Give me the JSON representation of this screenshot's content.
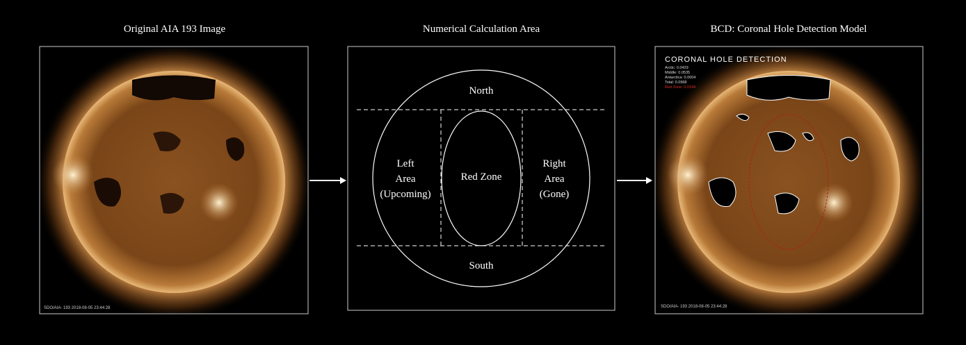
{
  "panels": [
    {
      "title": "Original AIA 193 Image",
      "caption": "SDO/AIA- 193 2018-08-05 23:44:28"
    },
    {
      "title": "Numerical Calculation Area",
      "north": "North",
      "south": "South",
      "left_area": [
        "Left",
        "Area",
        "(Upcoming)"
      ],
      "red_zone": "Red Zone",
      "right_area": [
        "Right",
        "Area",
        "(Gone)"
      ]
    },
    {
      "title": "BCD: Coronal Hole Detection Model",
      "heading": "CORONAL HOLE DETECTION",
      "stats": [
        "Arctic: 0.0429",
        "Middle: 0.0535",
        "Antarctica: 0.0004",
        "Total: 0.0968"
      ],
      "red_zone_stat": "Red Zone: 0.0194",
      "caption": "SDO/AIA- 193 2018-08-05 23:44:28"
    }
  ]
}
